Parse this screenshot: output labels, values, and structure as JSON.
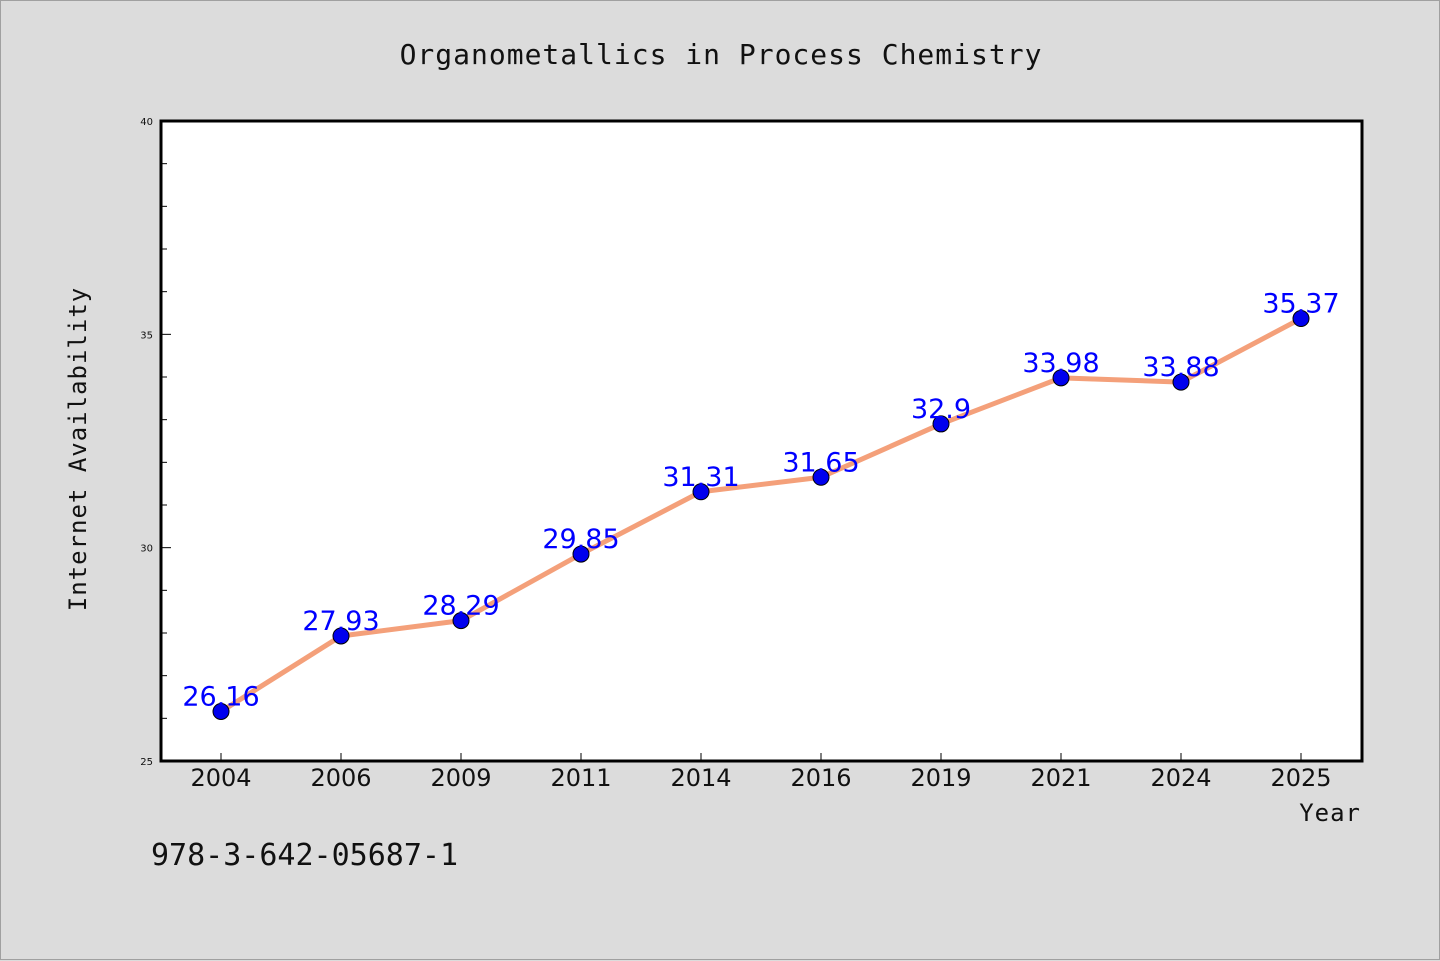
{
  "chart_data": {
    "type": "line",
    "title": "Organometallics in Process Chemistry",
    "xlabel": "Year",
    "ylabel": "Internet Availability",
    "categories": [
      "2004",
      "2006",
      "2009",
      "2011",
      "2014",
      "2016",
      "2019",
      "2021",
      "2024",
      "2025"
    ],
    "series": [
      {
        "values": [
          26.16,
          27.93,
          28.29,
          29.85,
          31.31,
          31.65,
          32.9,
          33.98,
          33.88,
          35.37
        ],
        "labels": [
          "26.16",
          "27.93",
          "28.29",
          "29.85",
          "31.31",
          "31.65",
          "32.9",
          "33.98",
          "33.88",
          "35.37"
        ],
        "line_color": "#f4a07a",
        "marker_color": "#0000ee"
      }
    ],
    "ylim": [
      25,
      40
    ],
    "y_major_ticks": [
      25,
      30,
      35,
      40
    ],
    "y_minor_step": 1,
    "grid": false,
    "legend": "none",
    "data_label_color": "#0000ff"
  },
  "footer": {
    "code": "978-3-642-05687-1"
  }
}
